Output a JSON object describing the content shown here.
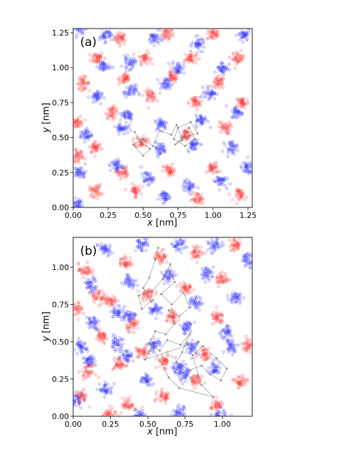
{
  "chart_data": [
    {
      "type": "scatter",
      "panel_label": "(a)",
      "xlabel_var": "x",
      "xlabel_unit": " [nm]",
      "ylabel_var": "y",
      "ylabel_unit": " [nm]",
      "xlim": [
        0,
        1.28
      ],
      "ylim": [
        0,
        1.28
      ],
      "xticks": [
        0.0,
        0.25,
        0.5,
        0.75,
        1.0,
        1.25
      ],
      "xtick_labels": [
        "0.00",
        "0.25",
        "0.50",
        "0.75",
        "1.00",
        "1.25"
      ],
      "yticks": [
        0.0,
        0.25,
        0.5,
        0.75,
        1.0,
        1.25
      ],
      "ytick_labels": [
        "0.00",
        "0.25",
        "0.50",
        "0.75",
        "1.00",
        "1.25"
      ],
      "series": [
        {
          "color": "#ff3333",
          "clusters": [
            [
              0.34,
              1.21
            ],
            [
              0.67,
              1.24
            ],
            [
              1.0,
              1.24
            ],
            [
              0.17,
              1.07
            ],
            [
              0.51,
              1.07
            ],
            [
              0.84,
              1.07
            ],
            [
              1.18,
              1.07
            ],
            [
              0.07,
              0.89
            ],
            [
              0.37,
              0.92
            ],
            [
              0.71,
              0.93
            ],
            [
              1.04,
              0.89
            ],
            [
              0.03,
              0.61
            ],
            [
              0.28,
              0.68
            ],
            [
              0.55,
              0.8
            ],
            [
              0.87,
              0.75
            ],
            [
              1.21,
              0.75
            ],
            [
              0.16,
              0.43
            ],
            [
              0.49,
              0.47
            ],
            [
              0.8,
              0.52
            ],
            [
              1.08,
              0.57
            ],
            [
              0.35,
              0.25
            ],
            [
              0.69,
              0.26
            ],
            [
              1.0,
              0.28
            ],
            [
              0.16,
              0.12
            ],
            [
              0.44,
              0.12
            ],
            [
              0.89,
              0.06
            ],
            [
              1.2,
              0.09
            ],
            [
              0.03,
              0.37
            ]
          ]
        },
        {
          "color": "#3333ff",
          "clusters": [
            [
              0.05,
              1.28
            ],
            [
              0.23,
              1.23
            ],
            [
              0.58,
              1.21
            ],
            [
              0.9,
              1.17
            ],
            [
              1.22,
              1.23
            ],
            [
              0.22,
              1.01
            ],
            [
              0.4,
              1.03
            ],
            [
              0.75,
              1.0
            ],
            [
              1.07,
              1.0
            ],
            [
              0.16,
              0.79
            ],
            [
              0.41,
              0.83
            ],
            [
              0.66,
              0.88
            ],
            [
              0.98,
              0.82
            ],
            [
              0.09,
              0.52
            ],
            [
              0.39,
              0.66
            ],
            [
              0.63,
              0.6
            ],
            [
              0.92,
              0.62
            ],
            [
              1.17,
              0.68
            ],
            [
              0.35,
              0.57
            ],
            [
              0.62,
              0.42
            ],
            [
              0.86,
              0.45
            ],
            [
              1.13,
              0.43
            ],
            [
              0.05,
              0.25
            ],
            [
              0.31,
              0.3
            ],
            [
              0.53,
              0.21
            ],
            [
              0.83,
              0.15
            ],
            [
              1.05,
              0.19
            ],
            [
              0.65,
              0.08
            ],
            [
              0.03,
              0.02
            ],
            [
              1.24,
              0.28
            ]
          ]
        }
      ],
      "trajectory": [
        [
          0.44,
          0.54
        ],
        [
          0.48,
          0.47
        ],
        [
          0.55,
          0.42
        ],
        [
          0.5,
          0.37
        ],
        [
          0.43,
          0.45
        ],
        [
          0.5,
          0.49
        ],
        [
          0.57,
          0.44
        ],
        [
          0.62,
          0.55
        ],
        [
          0.7,
          0.52
        ],
        [
          0.74,
          0.59
        ],
        [
          0.78,
          0.48
        ],
        [
          0.83,
          0.57
        ],
        [
          0.87,
          0.49
        ],
        [
          0.8,
          0.44
        ],
        [
          0.72,
          0.49
        ],
        [
          0.75,
          0.57
        ],
        [
          0.84,
          0.61
        ],
        [
          0.89,
          0.53
        ],
        [
          0.78,
          0.5
        ],
        [
          0.73,
          0.45
        ],
        [
          0.82,
          0.51
        ]
      ]
    },
    {
      "type": "scatter",
      "panel_label": "(b)",
      "xlabel_var": "x",
      "xlabel_unit": " [nm]",
      "ylabel_var": "y",
      "ylabel_unit": " [nm]",
      "xlim": [
        0,
        1.2
      ],
      "ylim": [
        0,
        1.2
      ],
      "xticks": [
        0.0,
        0.25,
        0.5,
        0.75,
        1.0
      ],
      "xtick_labels": [
        "0.00",
        "0.25",
        "0.50",
        "0.75",
        "1.00"
      ],
      "yticks": [
        0.0,
        0.25,
        0.5,
        0.75,
        1.0
      ],
      "ytick_labels": [
        "0.00",
        "0.25",
        "0.50",
        "0.75",
        "1.00"
      ],
      "series": [
        {
          "color": "#ff3333",
          "clusters": [
            [
              0.08,
              0.98
            ],
            [
              0.35,
              1.03
            ],
            [
              0.59,
              1.07
            ],
            [
              0.83,
              1.1
            ],
            [
              1.09,
              1.15
            ],
            [
              0.16,
              0.81
            ],
            [
              0.5,
              0.82
            ],
            [
              0.75,
              0.86
            ],
            [
              1.0,
              0.92
            ],
            [
              0.02,
              0.72
            ],
            [
              0.25,
              0.77
            ],
            [
              0.4,
              0.62
            ],
            [
              0.67,
              0.66
            ],
            [
              0.97,
              0.66
            ],
            [
              0.19,
              0.53
            ],
            [
              0.46,
              0.43
            ],
            [
              0.88,
              0.42
            ],
            [
              1.17,
              0.48
            ],
            [
              0.1,
              0.3
            ],
            [
              0.31,
              0.35
            ],
            [
              0.61,
              0.37
            ],
            [
              0.82,
              0.24
            ],
            [
              1.12,
              0.23
            ],
            [
              0.05,
              0.13
            ],
            [
              0.37,
              0.08
            ],
            [
              0.61,
              0.13
            ],
            [
              0.96,
              0.07
            ],
            [
              0.24,
              0.01
            ]
          ]
        },
        {
          "color": "#3333ff",
          "clusters": [
            [
              0.21,
              1.12
            ],
            [
              0.46,
              1.15
            ],
            [
              0.71,
              1.15
            ],
            [
              0.95,
              1.14
            ],
            [
              0.12,
              0.88
            ],
            [
              0.38,
              0.91
            ],
            [
              0.64,
              0.94
            ],
            [
              0.9,
              0.96
            ],
            [
              1.17,
              1.05
            ],
            [
              0.3,
              0.7
            ],
            [
              0.55,
              0.72
            ],
            [
              0.82,
              0.76
            ],
            [
              1.09,
              0.8
            ],
            [
              0.13,
              0.63
            ],
            [
              0.37,
              0.67
            ],
            [
              0.76,
              0.6
            ],
            [
              1.02,
              0.56
            ],
            [
              0.05,
              0.46
            ],
            [
              0.29,
              0.49
            ],
            [
              0.54,
              0.48
            ],
            [
              0.8,
              0.46
            ],
            [
              1.06,
              0.47
            ],
            [
              0.11,
              0.37
            ],
            [
              0.36,
              0.41
            ],
            [
              0.71,
              0.33
            ],
            [
              0.95,
              0.32
            ],
            [
              0.22,
              0.18
            ],
            [
              0.49,
              0.24
            ],
            [
              0.75,
              0.28
            ],
            [
              0.01,
              0.11
            ],
            [
              0.44,
              0.0
            ],
            [
              0.71,
              0.02
            ],
            [
              0.98,
              0.0
            ]
          ]
        }
      ],
      "trajectory": [
        [
          0.57,
          1.13
        ],
        [
          0.55,
          1.05
        ],
        [
          0.51,
          0.93
        ],
        [
          0.47,
          0.86
        ],
        [
          0.52,
          0.77
        ],
        [
          0.46,
          0.72
        ],
        [
          0.44,
          0.81
        ],
        [
          0.53,
          0.84
        ],
        [
          0.6,
          0.92
        ],
        [
          0.65,
          1.02
        ],
        [
          0.68,
          0.9
        ],
        [
          0.59,
          0.82
        ],
        [
          0.66,
          0.75
        ],
        [
          0.74,
          0.83
        ],
        [
          0.78,
          0.73
        ],
        [
          0.71,
          0.67
        ],
        [
          0.64,
          0.71
        ],
        [
          0.68,
          0.62
        ],
        [
          0.62,
          0.55
        ],
        [
          0.55,
          0.57
        ],
        [
          0.51,
          0.49
        ],
        [
          0.58,
          0.44
        ],
        [
          0.63,
          0.51
        ],
        [
          0.72,
          0.48
        ],
        [
          0.78,
          0.55
        ],
        [
          0.73,
          0.43
        ],
        [
          0.69,
          0.36
        ],
        [
          0.78,
          0.31
        ],
        [
          0.86,
          0.34
        ],
        [
          0.92,
          0.28
        ],
        [
          0.99,
          0.24
        ],
        [
          1.03,
          0.32
        ],
        [
          0.96,
          0.39
        ],
        [
          0.87,
          0.47
        ],
        [
          0.8,
          0.41
        ],
        [
          0.86,
          0.21
        ],
        [
          0.94,
          0.13
        ],
        [
          0.71,
          0.19
        ],
        [
          0.64,
          0.26
        ],
        [
          0.53,
          0.47
        ],
        [
          0.48,
          0.38
        ],
        [
          0.84,
          0.5
        ]
      ]
    }
  ]
}
